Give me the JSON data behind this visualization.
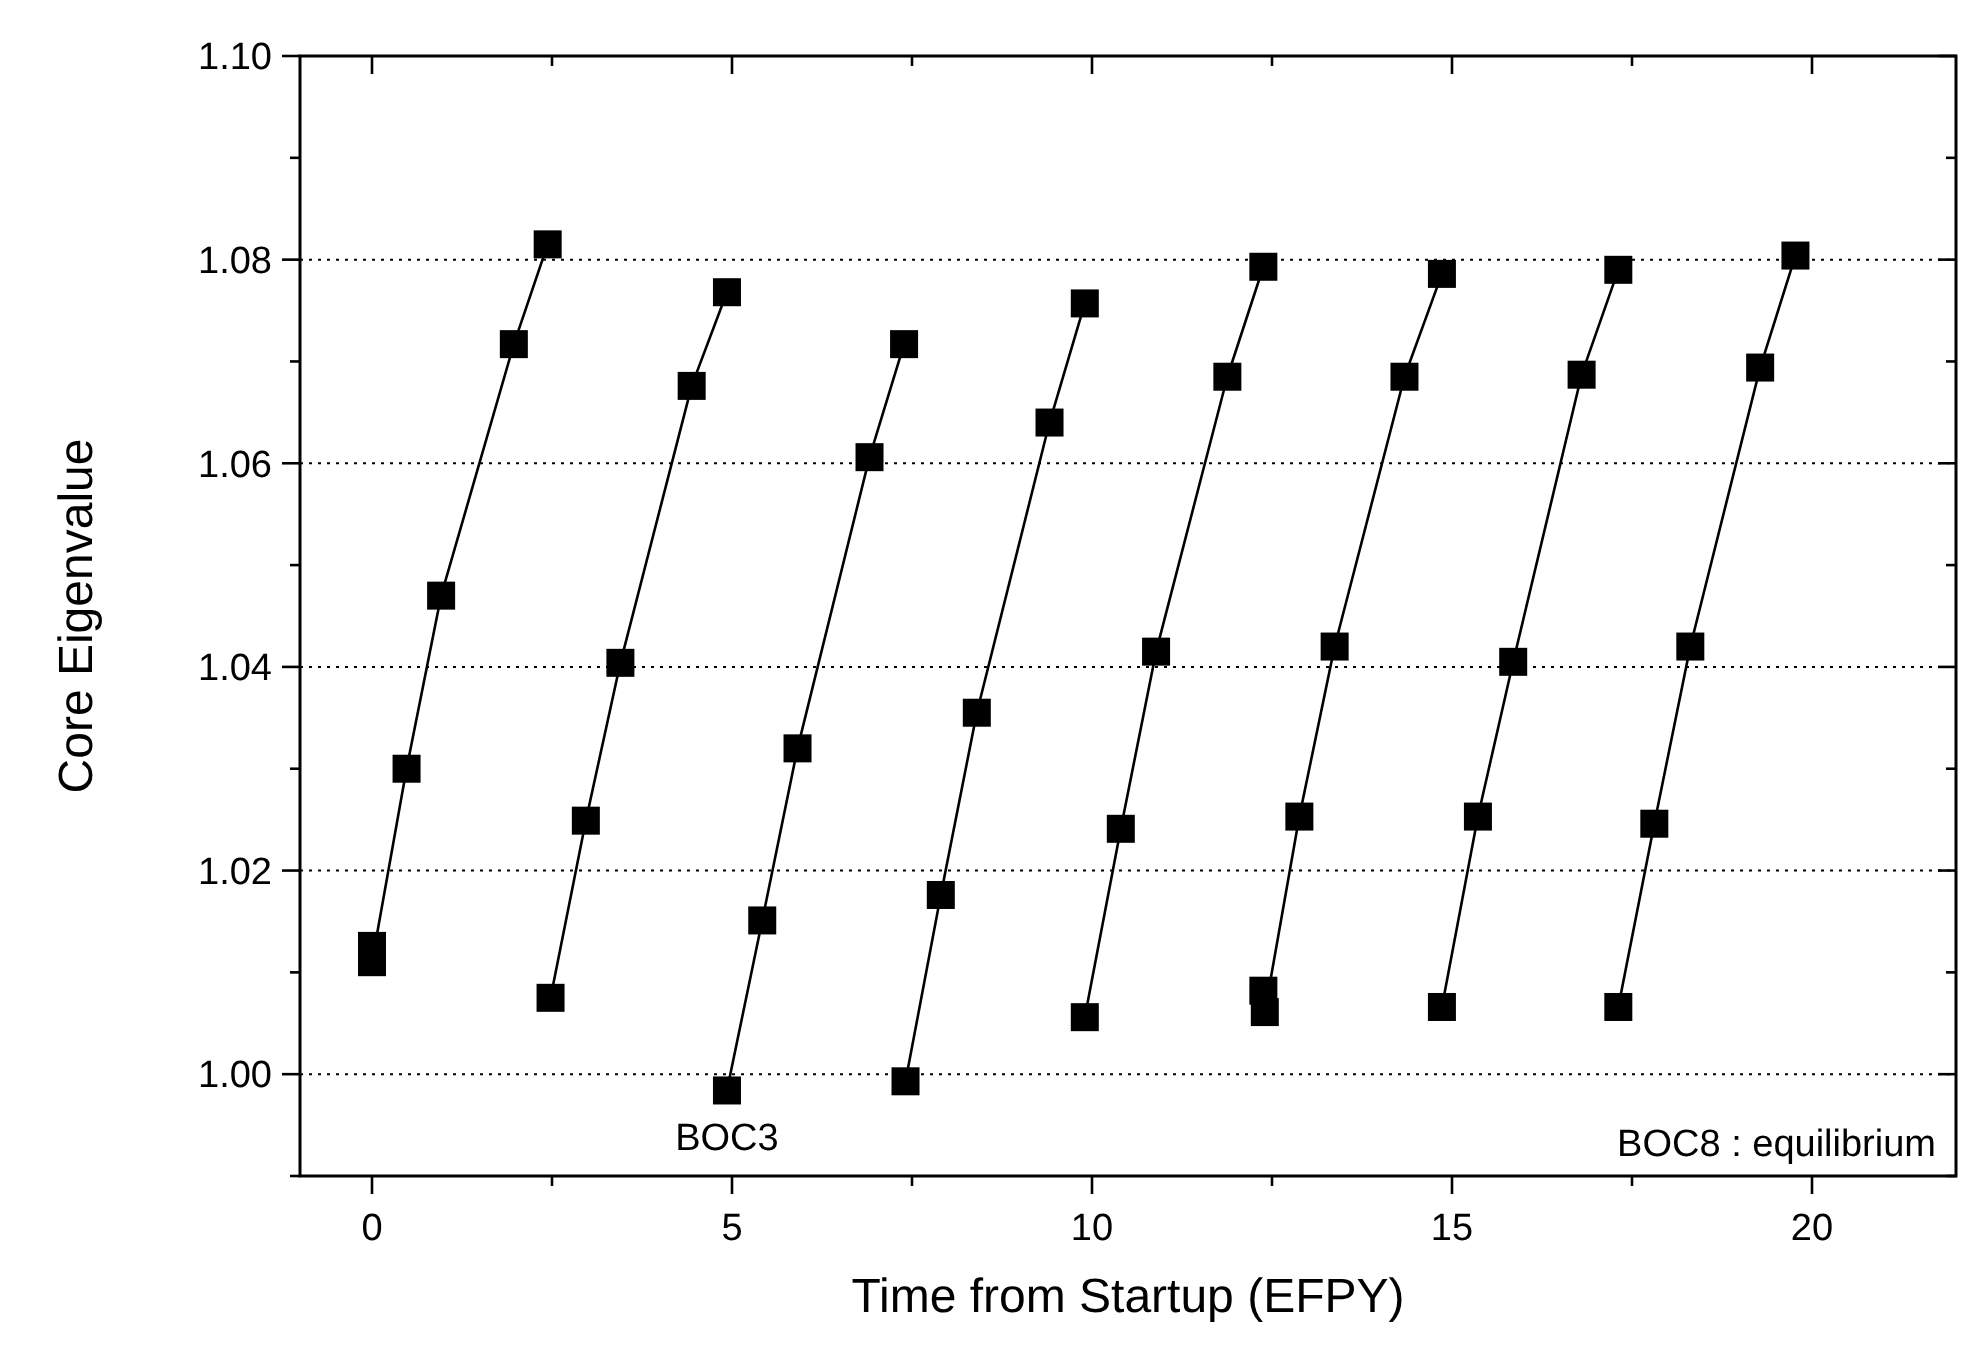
{
  "chart_data": {
    "type": "line",
    "xlabel": "Time from Startup (EFPY)",
    "ylabel": "Core Eigenvalue",
    "xlim": [
      -1,
      22
    ],
    "ylim": [
      0.99,
      1.1
    ],
    "xticks": [
      0,
      {
        "value": 2.5,
        "label": null
      },
      5,
      {
        "value": 7.5,
        "label": null
      },
      10,
      {
        "value": 12.5,
        "label": null
      },
      15,
      {
        "value": 17.5,
        "label": null
      },
      20
    ],
    "yticks": [
      {
        "value": 0.99,
        "label": null
      },
      {
        "value": 1.0,
        "label": "1.00"
      },
      {
        "value": 1.01,
        "label": null
      },
      {
        "value": 1.02,
        "label": "1.02"
      },
      {
        "value": 1.03,
        "label": null
      },
      {
        "value": 1.04,
        "label": "1.04"
      },
      {
        "value": 1.05,
        "label": null
      },
      {
        "value": 1.06,
        "label": "1.06"
      },
      {
        "value": 1.07,
        "label": null
      },
      {
        "value": 1.08,
        "label": "1.08"
      },
      {
        "value": 1.09,
        "label": null
      },
      {
        "value": 1.1,
        "label": "1.10"
      }
    ],
    "grid": "y",
    "marker": "square",
    "line_style": "solid",
    "series": [
      {
        "color": "#000000",
        "x": [
          0,
          0,
          0.48,
          0.96,
          1.97,
          2.44
        ],
        "values": [
          1.0126,
          1.011,
          1.03,
          1.047,
          1.0717,
          1.0815
        ]
      },
      {
        "color": "#000000",
        "x": [
          2.48,
          2.97,
          3.45,
          4.44,
          4.93
        ],
        "values": [
          1.0075,
          1.0249,
          1.0404,
          1.0676,
          1.0768
        ]
      },
      {
        "color": "#000000",
        "x": [
          4.93,
          5.42,
          5.91,
          6.91,
          7.39
        ],
        "values": [
          0.9984,
          1.0151,
          1.032,
          1.0606,
          1.0717
        ]
      },
      {
        "color": "#000000",
        "x": [
          7.41,
          7.9,
          8.4,
          9.41,
          9.9
        ],
        "values": [
          0.9993,
          1.0176,
          1.0355,
          1.064,
          1.0757
        ]
      },
      {
        "color": "#000000",
        "x": [
          9.9,
          10.4,
          10.89,
          11.88,
          12.38
        ],
        "values": [
          1.0056,
          1.0241,
          1.0415,
          1.0685,
          1.0793
        ]
      },
      {
        "color": "#000000",
        "x": [
          12.38,
          12.4,
          12.88,
          13.37,
          14.34,
          14.86
        ],
        "values": [
          1.0082,
          1.0061,
          1.0253,
          1.042,
          1.0685,
          1.0786
        ]
      },
      {
        "color": "#000000",
        "x": [
          14.86,
          15.36,
          15.85,
          16.8,
          17.31
        ],
        "values": [
          1.0066,
          1.0253,
          1.0405,
          1.0687,
          1.079
        ]
      },
      {
        "color": "#000000",
        "x": [
          17.31,
          17.81,
          18.31,
          19.28,
          19.77
        ],
        "values": [
          1.0066,
          1.0246,
          1.042,
          1.0694,
          1.0804
        ]
      }
    ],
    "annotations": [
      {
        "text": "BOC3",
        "x": 4.93,
        "y": 0.9984
      },
      "BOC8 : equilibrium"
    ]
  }
}
